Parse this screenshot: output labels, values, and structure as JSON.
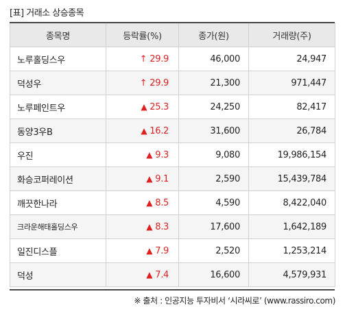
{
  "caption": "[표] 거래소 상승종목",
  "headers": [
    "종목명",
    "등락률(%)",
    "종가(원)",
    "거래량(주)"
  ],
  "rows": [
    {
      "name": "노루홀딩스우",
      "arrow": "↑",
      "rate": "29.9",
      "price": "46,000",
      "volume": "24,947"
    },
    {
      "name": "덕성우",
      "arrow": "↑",
      "rate": "29.9",
      "price": "21,300",
      "volume": "971,447"
    },
    {
      "name": "노루페인트우",
      "arrow": "▲",
      "rate": "25.3",
      "price": "24,250",
      "volume": "82,417"
    },
    {
      "name": "동양3우B",
      "arrow": "▲",
      "rate": "16.2",
      "price": "31,600",
      "volume": "26,784"
    },
    {
      "name": "우진",
      "arrow": "▲",
      "rate": "9.3",
      "price": "9,080",
      "volume": "19,986,154"
    },
    {
      "name": "화승코퍼레이션",
      "arrow": "▲",
      "rate": "9.1",
      "price": "2,590",
      "volume": "15,439,784"
    },
    {
      "name": "깨끗한나라",
      "arrow": "▲",
      "rate": "8.5",
      "price": "4,590",
      "volume": "8,422,040"
    },
    {
      "name": "크라운해태홀딩스우",
      "arrow": "▲",
      "rate": "8.3",
      "price": "17,600",
      "volume": "1,642,189"
    },
    {
      "name": "일진디스플",
      "arrow": "▲",
      "rate": "7.9",
      "price": "2,520",
      "volume": "1,253,214"
    },
    {
      "name": "덕성",
      "arrow": "▲",
      "rate": "7.4",
      "price": "16,600",
      "volume": "4,579,931"
    }
  ],
  "source": "※ 출처 : 인공지능 투자비서 ‘시라씨로’ (www.rassiro.com)",
  "colors": {
    "up": "#e02020",
    "header_bg": "#e9e9e9",
    "alt_row_bg": "#f5f5f5"
  }
}
